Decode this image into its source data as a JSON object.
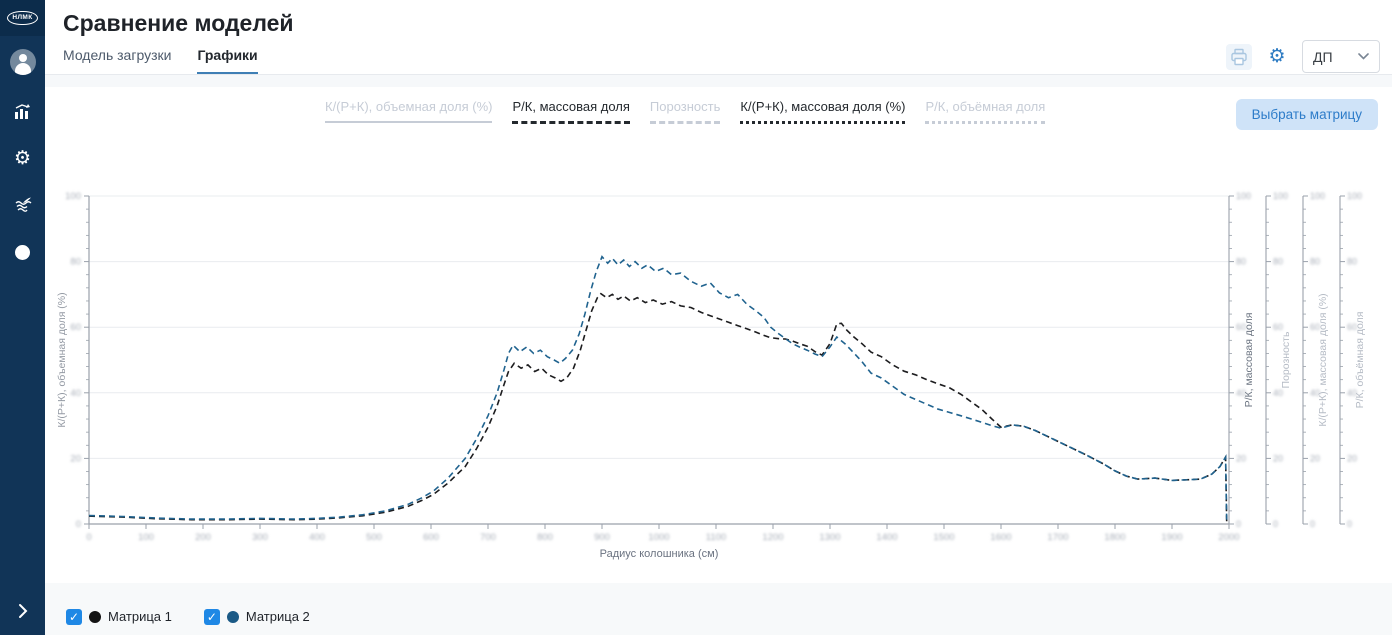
{
  "sidebar": {
    "logo_text": "НЛМК",
    "icons": [
      "user-avatar",
      "analytics",
      "settings",
      "streams",
      "status-dot"
    ],
    "gear_glyph": "⚙"
  },
  "header": {
    "title": "Сравнение моделей",
    "tabs": [
      {
        "label": "Модель загрузки",
        "active": false
      },
      {
        "label": "Графики",
        "active": true
      }
    ],
    "scenario_select": {
      "value": "ДП"
    }
  },
  "toolbar": {
    "select_matrix_label": "Выбрать матрицу"
  },
  "measure_legend": {
    "items": [
      {
        "label": "К/(Р+К), объемная доля (%)",
        "line_style": "solid",
        "active": false
      },
      {
        "label": "Р/К, массовая доля",
        "line_style": "dashed",
        "active": true
      },
      {
        "label": "Порозность",
        "line_style": "dashed",
        "active": false
      },
      {
        "label": "К/(Р+К), массовая доля (%)",
        "line_style": "dotted",
        "active": true
      },
      {
        "label": "Р/К, объёмная доля",
        "line_style": "dotted",
        "active": false
      }
    ],
    "active_color": "#24292e",
    "inactive_color": "#c6ccd6"
  },
  "chart_data": {
    "type": "line",
    "xlabel": "Радиус колошника (см)",
    "ylabel_left": "К/(Р+К), объемная доля (%)",
    "right_axes": [
      {
        "title": "Р/К, массовая доля",
        "active": true
      },
      {
        "title": "Порозность",
        "active": false
      },
      {
        "title": "К/(Р+К), массовая доля (%)",
        "active": false
      },
      {
        "title": "Р/К, объёмная доля",
        "active": false
      }
    ],
    "ylim": [
      0,
      100
    ],
    "grid": "horizontal",
    "tick_labels_blurred": true,
    "placeholder_y_ticks": [
      "0",
      "20",
      "40",
      "60",
      "80",
      "100"
    ],
    "placeholder_x_tick_count": 21,
    "legend_position": "bottom-left",
    "series": [
      {
        "name": "Матрица 1",
        "color": "#1d1d1f",
        "dash": "6 4",
        "points": [
          [
            0.0,
            2.4
          ],
          [
            0.03,
            2.1
          ],
          [
            0.06,
            1.6
          ],
          [
            0.09,
            1.3
          ],
          [
            0.12,
            1.3
          ],
          [
            0.15,
            1.5
          ],
          [
            0.18,
            1.3
          ],
          [
            0.2,
            1.5
          ],
          [
            0.22,
            1.9
          ],
          [
            0.24,
            2.5
          ],
          [
            0.26,
            3.6
          ],
          [
            0.28,
            5.4
          ],
          [
            0.292,
            7.2
          ],
          [
            0.302,
            9.0
          ],
          [
            0.315,
            12.5
          ],
          [
            0.33,
            17.5
          ],
          [
            0.34,
            23.0
          ],
          [
            0.35,
            29.5
          ],
          [
            0.358,
            36.0
          ],
          [
            0.364,
            42.5
          ],
          [
            0.368,
            46.5
          ],
          [
            0.373,
            49.0
          ],
          [
            0.379,
            47.5
          ],
          [
            0.385,
            48.5
          ],
          [
            0.391,
            46.5
          ],
          [
            0.397,
            47.5
          ],
          [
            0.403,
            45.5
          ],
          [
            0.409,
            44.5
          ],
          [
            0.414,
            43.5
          ],
          [
            0.419,
            44.5
          ],
          [
            0.425,
            47.5
          ],
          [
            0.431,
            53.0
          ],
          [
            0.436,
            59.0
          ],
          [
            0.441,
            65.0
          ],
          [
            0.446,
            69.0
          ],
          [
            0.449,
            70.2
          ],
          [
            0.454,
            69.0
          ],
          [
            0.459,
            70.0
          ],
          [
            0.464,
            68.5
          ],
          [
            0.469,
            69.5
          ],
          [
            0.475,
            68.0
          ],
          [
            0.481,
            69.0
          ],
          [
            0.488,
            67.5
          ],
          [
            0.495,
            68.3
          ],
          [
            0.503,
            67.0
          ],
          [
            0.511,
            67.8
          ],
          [
            0.519,
            66.5
          ],
          [
            0.528,
            66.0
          ],
          [
            0.537,
            64.5
          ],
          [
            0.545,
            63.5
          ],
          [
            0.553,
            62.5
          ],
          [
            0.561,
            61.5
          ],
          [
            0.569,
            60.5
          ],
          [
            0.577,
            59.5
          ],
          [
            0.585,
            58.5
          ],
          [
            0.592,
            57.5
          ],
          [
            0.598,
            56.8
          ],
          [
            0.605,
            56.5
          ],
          [
            0.611,
            56.4
          ],
          [
            0.617,
            55.8
          ],
          [
            0.623,
            55.0
          ],
          [
            0.63,
            54.2
          ],
          [
            0.637,
            52.5
          ],
          [
            0.643,
            51.5
          ],
          [
            0.65,
            55.0
          ],
          [
            0.656,
            61.0
          ],
          [
            0.66,
            61.2
          ],
          [
            0.665,
            59.0
          ],
          [
            0.671,
            57.0
          ],
          [
            0.678,
            55.0
          ],
          [
            0.686,
            52.4
          ],
          [
            0.695,
            51.0
          ],
          [
            0.705,
            48.5
          ],
          [
            0.715,
            46.6
          ],
          [
            0.725,
            45.5
          ],
          [
            0.735,
            44.0
          ],
          [
            0.745,
            42.7
          ],
          [
            0.755,
            41.5
          ],
          [
            0.765,
            39.5
          ],
          [
            0.774,
            37.2
          ],
          [
            0.783,
            35.0
          ],
          [
            0.792,
            32.0
          ],
          [
            0.8,
            29.5
          ],
          [
            0.81,
            30.2
          ],
          [
            0.82,
            29.8
          ],
          [
            0.83,
            28.5
          ],
          [
            0.845,
            26.0
          ],
          [
            0.86,
            23.5
          ],
          [
            0.875,
            21.0
          ],
          [
            0.89,
            18.3
          ],
          [
            0.9,
            16.2
          ],
          [
            0.91,
            14.6
          ],
          [
            0.92,
            13.7
          ],
          [
            0.935,
            14.0
          ],
          [
            0.95,
            13.3
          ],
          [
            0.965,
            13.5
          ],
          [
            0.975,
            13.7
          ],
          [
            0.985,
            15.2
          ],
          [
            0.992,
            17.5
          ],
          [
            0.997,
            20.4
          ],
          [
            0.998,
            0.5
          ]
        ]
      },
      {
        "name": "Матрица 2",
        "color": "#20638f",
        "dash": "6 4",
        "points": [
          [
            0.0,
            2.6
          ],
          [
            0.03,
            2.3
          ],
          [
            0.06,
            1.8
          ],
          [
            0.09,
            1.5
          ],
          [
            0.12,
            1.5
          ],
          [
            0.15,
            1.7
          ],
          [
            0.18,
            1.5
          ],
          [
            0.2,
            1.7
          ],
          [
            0.22,
            2.1
          ],
          [
            0.24,
            2.8
          ],
          [
            0.26,
            4.0
          ],
          [
            0.28,
            6.0
          ],
          [
            0.292,
            8.0
          ],
          [
            0.302,
            10.0
          ],
          [
            0.315,
            14.0
          ],
          [
            0.33,
            20.0
          ],
          [
            0.34,
            26.0
          ],
          [
            0.35,
            33.0
          ],
          [
            0.358,
            40.0
          ],
          [
            0.364,
            47.0
          ],
          [
            0.368,
            52.0
          ],
          [
            0.372,
            54.5
          ],
          [
            0.378,
            52.5
          ],
          [
            0.384,
            54.0
          ],
          [
            0.39,
            52.0
          ],
          [
            0.396,
            53.0
          ],
          [
            0.402,
            51.0
          ],
          [
            0.408,
            50.0
          ],
          [
            0.413,
            49.0
          ],
          [
            0.418,
            50.5
          ],
          [
            0.424,
            53.0
          ],
          [
            0.43,
            58.0
          ],
          [
            0.435,
            64.0
          ],
          [
            0.44,
            71.0
          ],
          [
            0.445,
            77.0
          ],
          [
            0.45,
            81.5
          ],
          [
            0.455,
            79.5
          ],
          [
            0.459,
            81.0
          ],
          [
            0.464,
            79.0
          ],
          [
            0.469,
            80.5
          ],
          [
            0.474,
            78.5
          ],
          [
            0.479,
            80.0
          ],
          [
            0.485,
            78.0
          ],
          [
            0.49,
            79.0
          ],
          [
            0.497,
            77.0
          ],
          [
            0.504,
            78.0
          ],
          [
            0.511,
            76.0
          ],
          [
            0.519,
            76.5
          ],
          [
            0.528,
            74.0
          ],
          [
            0.537,
            72.5
          ],
          [
            0.545,
            73.5
          ],
          [
            0.553,
            70.5
          ],
          [
            0.561,
            69.0
          ],
          [
            0.569,
            70.0
          ],
          [
            0.577,
            67.0
          ],
          [
            0.585,
            65.0
          ],
          [
            0.592,
            63.0
          ],
          [
            0.598,
            60.0
          ],
          [
            0.605,
            58.0
          ],
          [
            0.611,
            56.5
          ],
          [
            0.617,
            55.0
          ],
          [
            0.623,
            54.0
          ],
          [
            0.63,
            53.0
          ],
          [
            0.637,
            51.8
          ],
          [
            0.643,
            51.0
          ],
          [
            0.65,
            54.0
          ],
          [
            0.656,
            57.0
          ],
          [
            0.663,
            55.0
          ],
          [
            0.67,
            52.5
          ],
          [
            0.678,
            49.5
          ],
          [
            0.686,
            46.0
          ],
          [
            0.695,
            44.5
          ],
          [
            0.705,
            42.0
          ],
          [
            0.715,
            39.5
          ],
          [
            0.725,
            38.0
          ],
          [
            0.735,
            36.5
          ],
          [
            0.745,
            35.0
          ],
          [
            0.755,
            34.0
          ],
          [
            0.765,
            33.0
          ],
          [
            0.774,
            32.0
          ],
          [
            0.783,
            31.0
          ],
          [
            0.792,
            30.0
          ],
          [
            0.8,
            29.2
          ],
          [
            0.81,
            30.2
          ],
          [
            0.82,
            29.8
          ],
          [
            0.83,
            28.5
          ],
          [
            0.845,
            26.0
          ],
          [
            0.86,
            23.5
          ],
          [
            0.875,
            21.0
          ],
          [
            0.89,
            18.3
          ],
          [
            0.9,
            16.2
          ],
          [
            0.91,
            14.6
          ],
          [
            0.92,
            13.7
          ],
          [
            0.935,
            14.0
          ],
          [
            0.95,
            13.3
          ],
          [
            0.965,
            13.5
          ],
          [
            0.975,
            13.7
          ],
          [
            0.985,
            15.2
          ],
          [
            0.992,
            17.5
          ],
          [
            0.997,
            20.4
          ],
          [
            0.998,
            0.5
          ]
        ]
      }
    ]
  },
  "bottom_legend": [
    {
      "label": "Матрица 1",
      "checked": true,
      "dot_color": "#141414"
    },
    {
      "label": "Матрица 2",
      "checked": true,
      "dot_color": "#1b5a86"
    }
  ],
  "glyphs": {
    "check": "✓"
  },
  "colors": {
    "sidebar_bg": "#113457",
    "accent_blue": "#2e7cc3",
    "grid": "#e9ecef",
    "axis": "#9aa1ab",
    "blurred_label": "#a8aeb8"
  }
}
